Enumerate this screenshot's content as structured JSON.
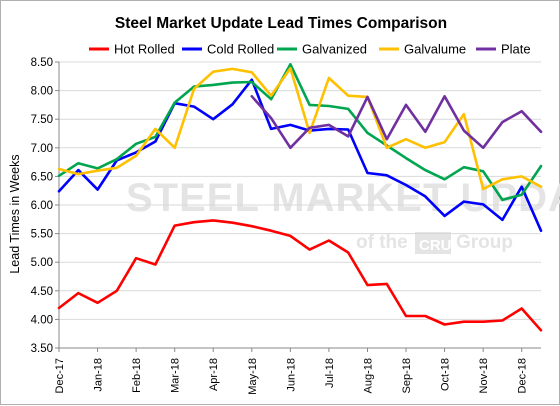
{
  "chart_data": {
    "type": "line",
    "title": "Steel Market Update Lead Times Comparison",
    "ylabel": "Lead Times in Weeks",
    "xlabel": "",
    "ylim": [
      3.5,
      8.5
    ],
    "yticks": [
      "3.50",
      "4.00",
      "4.50",
      "5.00",
      "5.50",
      "6.00",
      "6.50",
      "7.00",
      "7.50",
      "8.00",
      "8.50"
    ],
    "grid": true,
    "legend_position": "top",
    "x_labels": [
      "Dec-17",
      "Jan-18",
      "Feb-18",
      "Mar-18",
      "Apr-18",
      "May-18",
      "Jun-18",
      "Jul-18",
      "Aug-18",
      "Sep-18",
      "Oct-18",
      "Nov-18",
      "Dec-18"
    ],
    "watermark": {
      "brand": "STEEL MARKET UPDATE",
      "sub_left": "of the",
      "sub_box": "CRU",
      "sub_right": "Group"
    },
    "series": [
      {
        "name": "Hot Rolled",
        "color": "#ff0000",
        "start": 0,
        "values": [
          4.2,
          4.46,
          4.29,
          4.5,
          5.07,
          4.96,
          5.64,
          5.7,
          5.73,
          5.69,
          5.63,
          5.55,
          5.46,
          5.22,
          5.38,
          5.17,
          4.6,
          4.62,
          4.06,
          4.06,
          3.91,
          3.96,
          3.96,
          3.98,
          4.19,
          3.81
        ]
      },
      {
        "name": "Cold Rolled",
        "color": "#0000ff",
        "start": 0,
        "values": [
          6.24,
          6.61,
          6.27,
          6.78,
          6.92,
          7.11,
          7.78,
          7.72,
          7.5,
          7.76,
          8.19,
          7.33,
          7.4,
          7.3,
          7.33,
          7.32,
          6.56,
          6.52,
          6.35,
          6.15,
          5.81,
          6.06,
          6.01,
          5.74,
          6.32,
          5.55
        ]
      },
      {
        "name": "Galvanized",
        "color": "#00a550",
        "start": 0,
        "values": [
          6.51,
          6.73,
          6.64,
          6.8,
          7.07,
          7.19,
          7.79,
          8.07,
          8.1,
          8.14,
          8.15,
          7.85,
          8.46,
          7.75,
          7.73,
          7.68,
          7.26,
          7.04,
          6.82,
          6.61,
          6.45,
          6.66,
          6.59,
          6.09,
          6.18,
          6.68
        ]
      },
      {
        "name": "Galvalume",
        "color": "#ffc000",
        "start": 0,
        "values": [
          6.63,
          6.54,
          6.6,
          6.65,
          6.86,
          7.33,
          7.0,
          8.03,
          8.33,
          8.38,
          8.32,
          7.91,
          8.39,
          7.26,
          8.22,
          7.91,
          7.89,
          7.0,
          7.15,
          7.0,
          7.1,
          7.59,
          6.28,
          6.45,
          6.5,
          6.32
        ]
      },
      {
        "name": "Plate",
        "color": "#7030a0",
        "start": 10,
        "values": [
          7.9,
          7.52,
          7.0,
          7.35,
          7.4,
          7.2,
          7.89,
          7.15,
          7.75,
          7.28,
          7.9,
          7.3,
          7.0,
          7.45,
          7.64,
          7.28
        ]
      }
    ]
  }
}
